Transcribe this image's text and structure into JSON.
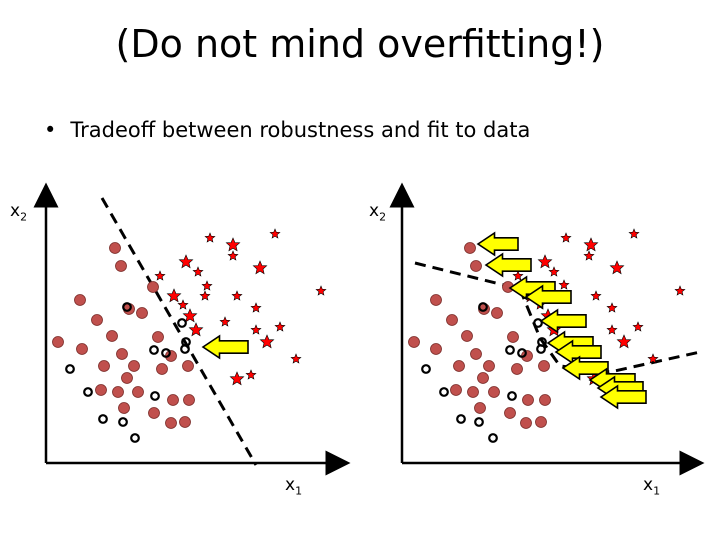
{
  "title": "(Do not mind overfitting!)",
  "bullet": {
    "marker": "•",
    "text": "Tradeoff between robustness and fit to data"
  },
  "panels": [
    {
      "x_label": "x",
      "x_sub": "1",
      "y_label": "x",
      "y_sub": "2"
    },
    {
      "x_label": "x",
      "x_sub": "1",
      "y_label": "x",
      "y_sub": "2"
    }
  ],
  "colors": {
    "filled_point": "#c0504d",
    "star_point": "#ff0000",
    "open_circle": "#000000",
    "arrow_fill": "#ffff00",
    "boundary": "#000000"
  },
  "icons": [
    "filled-circle-marker",
    "star-marker",
    "open-circle-marker",
    "left-arrow-icon",
    "dashed-boundary-line"
  ]
}
